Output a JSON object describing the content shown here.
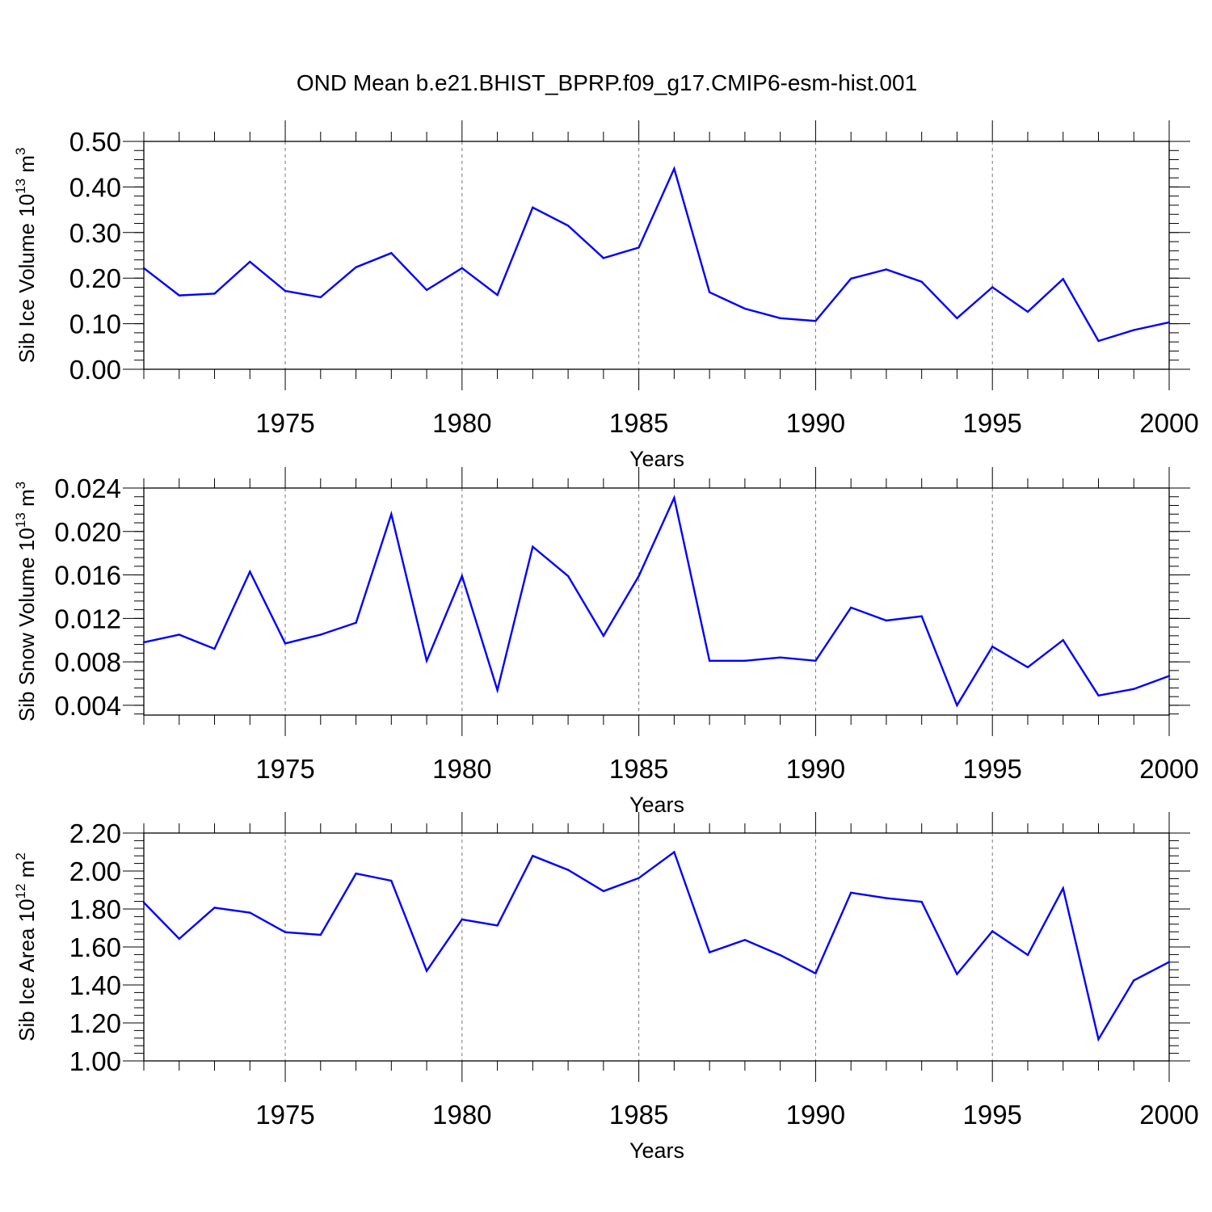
{
  "title": "OND Mean b.e21.BHIST_BPRP.f09_g17.CMIP6-esm-hist.001",
  "chart_data": [
    {
      "type": "line",
      "ylabel": "Sib Ice Volume",
      "yunit": {
        "base": "10",
        "exp": "13",
        "unit": "m",
        "unit_exp": "3"
      },
      "xlabel": "Years",
      "xlim": [
        1971,
        2000
      ],
      "ylim": [
        0,
        0.5
      ],
      "x_ticks": [
        "1975",
        "1980",
        "1985",
        "1990",
        "1995",
        "2000"
      ],
      "y_ticks": [
        "0.00",
        "0.10",
        "0.20",
        "0.30",
        "0.40",
        "0.50"
      ],
      "grid": "vertical-dashed",
      "color": "#0000ff",
      "series": [
        {
          "x": [
            1971,
            1972,
            1973,
            1974,
            1975,
            1976,
            1977,
            1978,
            1979,
            1980,
            1981,
            1982,
            1983,
            1984,
            1985,
            1986,
            1987,
            1988,
            1989,
            1990,
            1991,
            1992,
            1993,
            1994,
            1995,
            1996,
            1997,
            1998,
            1999,
            2000
          ],
          "values": [
            0.222,
            0.162,
            0.166,
            0.236,
            0.172,
            0.158,
            0.224,
            0.255,
            0.174,
            0.222,
            0.163,
            0.355,
            0.315,
            0.244,
            0.267,
            0.44,
            0.169,
            0.133,
            0.112,
            0.106,
            0.199,
            0.219,
            0.192,
            0.112,
            0.18,
            0.126,
            0.198,
            0.062,
            0.086,
            0.103
          ]
        }
      ]
    },
    {
      "type": "line",
      "ylabel": "Sib Snow Volume",
      "yunit": {
        "base": "10",
        "exp": "13",
        "unit": "m",
        "unit_exp": "3"
      },
      "xlabel": "Years",
      "xlim": [
        1971,
        2000
      ],
      "ylim": [
        0.0031,
        0.024
      ],
      "x_ticks": [
        "1975",
        "1980",
        "1985",
        "1990",
        "1995",
        "2000"
      ],
      "y_ticks": [
        "0.004",
        "0.008",
        "0.012",
        "0.016",
        "0.020",
        "0.024"
      ],
      "grid": "vertical-dashed",
      "color": "#0000ff",
      "series": [
        {
          "x": [
            1971,
            1972,
            1973,
            1974,
            1975,
            1976,
            1977,
            1978,
            1979,
            1980,
            1981,
            1982,
            1983,
            1984,
            1985,
            1986,
            1987,
            1988,
            1989,
            1990,
            1991,
            1992,
            1993,
            1994,
            1995,
            1996,
            1997,
            1998,
            1999,
            2000
          ],
          "values": [
            0.0098,
            0.0105,
            0.0092,
            0.0163,
            0.0097,
            0.0105,
            0.0116,
            0.0216,
            0.0081,
            0.0159,
            0.0054,
            0.0186,
            0.0159,
            0.0104,
            0.0159,
            0.0231,
            0.0081,
            0.0081,
            0.0084,
            0.0081,
            0.013,
            0.0118,
            0.0122,
            0.004,
            0.0094,
            0.0075,
            0.01,
            0.0049,
            0.0055,
            0.0067
          ]
        }
      ]
    },
    {
      "type": "line",
      "ylabel": "Sib Ice Area",
      "yunit": {
        "base": "10",
        "exp": "12",
        "unit": "m",
        "unit_exp": "2"
      },
      "xlabel": "Years",
      "xlim": [
        1971,
        2000
      ],
      "ylim": [
        1.0,
        2.2
      ],
      "x_ticks": [
        "1975",
        "1980",
        "1985",
        "1990",
        "1995",
        "2000"
      ],
      "y_ticks": [
        "1.00",
        "1.20",
        "1.40",
        "1.60",
        "1.80",
        "2.00",
        "2.20"
      ],
      "grid": "vertical-dashed",
      "color": "#0000ff",
      "series": [
        {
          "x": [
            1971,
            1972,
            1973,
            1974,
            1975,
            1976,
            1977,
            1978,
            1979,
            1980,
            1981,
            1982,
            1983,
            1984,
            1985,
            1986,
            1987,
            1988,
            1989,
            1990,
            1991,
            1992,
            1993,
            1994,
            1995,
            1996,
            1997,
            1998,
            1999,
            2000
          ],
          "values": [
            1.834,
            1.643,
            1.807,
            1.781,
            1.678,
            1.664,
            1.987,
            1.949,
            1.474,
            1.745,
            1.713,
            2.08,
            2.006,
            1.894,
            1.963,
            2.1,
            1.572,
            1.637,
            1.557,
            1.461,
            1.886,
            1.857,
            1.838,
            1.457,
            1.683,
            1.558,
            1.909,
            1.114,
            1.424,
            1.521
          ]
        }
      ]
    }
  ]
}
